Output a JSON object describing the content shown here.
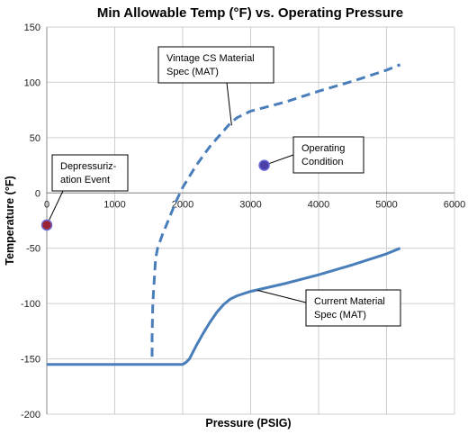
{
  "chart_data": {
    "type": "line",
    "title": "Min Allowable Temp (°F) vs. Operating Pressure",
    "xlabel": "Pressure (PSIG)",
    "ylabel": "Temperature  (°F)",
    "xlim": [
      0,
      6000
    ],
    "ylim": [
      -200,
      150
    ],
    "xticks": [
      "0",
      "1000",
      "2000",
      "3000",
      "4000",
      "5000",
      "6000"
    ],
    "yticks": [
      "150",
      "100",
      "50",
      "0",
      "-50",
      "-100",
      "-150",
      "-200"
    ],
    "grid": true,
    "colors": {
      "line": "#4a7ebb",
      "event_point": "#9b2335",
      "operating_point": "#4b3fa8"
    },
    "series": [
      {
        "style": "dashed",
        "points": [
          [
            1550,
            -148
          ],
          [
            1550,
            -130
          ],
          [
            1560,
            -100
          ],
          [
            1600,
            -60
          ],
          [
            1630,
            -50
          ],
          [
            1700,
            -38
          ],
          [
            1800,
            -23
          ],
          [
            1900,
            -8
          ],
          [
            2000,
            5
          ],
          [
            2100,
            15
          ],
          [
            2200,
            25
          ],
          [
            2400,
            42
          ],
          [
            2600,
            56
          ],
          [
            2700,
            63
          ],
          [
            2800,
            68
          ],
          [
            3000,
            74
          ],
          [
            3500,
            82
          ],
          [
            4000,
            92
          ],
          [
            4500,
            101
          ],
          [
            5000,
            111
          ],
          [
            5200,
            116
          ]
        ]
      },
      {
        "style": "solid",
        "points": [
          [
            0,
            -155
          ],
          [
            2000,
            -155
          ],
          [
            2050,
            -153
          ],
          [
            2100,
            -150
          ],
          [
            2200,
            -138
          ],
          [
            2300,
            -127
          ],
          [
            2400,
            -117
          ],
          [
            2500,
            -108
          ],
          [
            2600,
            -101
          ],
          [
            2700,
            -96
          ],
          [
            2800,
            -93
          ],
          [
            3000,
            -89
          ],
          [
            3500,
            -82
          ],
          [
            4000,
            -74
          ],
          [
            4500,
            -65
          ],
          [
            5000,
            -55
          ],
          [
            5200,
            -50
          ]
        ]
      }
    ],
    "points": [
      {
        "x": 0,
        "y": -29,
        "color": "#9b2335"
      },
      {
        "x": 3200,
        "y": 25,
        "color": "#4b3fa8"
      }
    ],
    "annotations": [
      {
        "lines": [
          "Vintage CS Material",
          "Spec (MAT)"
        ],
        "target": [
          2720,
          61
        ]
      },
      {
        "lines": [
          "Operating",
          "Condition"
        ],
        "target": [
          3200,
          25
        ]
      },
      {
        "lines": [
          "Depressuriz-",
          "ation Event"
        ],
        "target": [
          0,
          -29
        ]
      },
      {
        "lines": [
          "Current Material",
          "Spec (MAT)"
        ],
        "target": [
          3100,
          -88
        ]
      }
    ]
  }
}
